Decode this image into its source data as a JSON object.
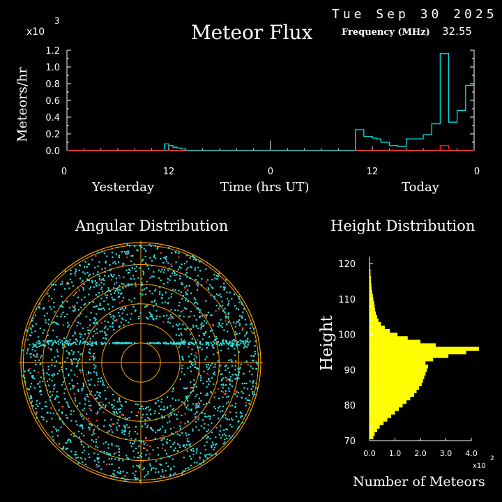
{
  "header": {
    "date": "Tue Sep 30 2025",
    "frequency_label": "Frequency (MHz)",
    "frequency_value": "32.55"
  },
  "colors": {
    "background": "#000000",
    "axes": "#ffffff",
    "flux_line": "#00e5e5",
    "flux_red": "#ff2020",
    "ring": "#ffa500",
    "points": "#33dddd",
    "points_red": "#ff3030",
    "histogram": "#ffff00"
  },
  "chart_data": [
    {
      "type": "line",
      "title": "Meteor Flux",
      "ylabel": "Meteors/hr",
      "yexponent_label": "x10",
      "yexponent": "3",
      "xlabel": "Time (hrs UT)",
      "x_day_labels": [
        "Yesterday",
        "Today"
      ],
      "xticks": [
        "0",
        "12",
        "0",
        "12",
        "0"
      ],
      "yticks": [
        "0.0",
        "0.2",
        "0.4",
        "0.6",
        "0.8",
        "1.0",
        "1.2"
      ],
      "ylim": [
        0,
        1.2
      ],
      "xlim": [
        0,
        48
      ],
      "series": [
        {
          "color": "cyan",
          "x": [
            11.5,
            12.0,
            12.5,
            13.0,
            13.5,
            14.0,
            34.0,
            35.0,
            36.0,
            36.5,
            37.0,
            38.0,
            39.0,
            40.0,
            41.0,
            42.0,
            43.0,
            44.0,
            45.0,
            46.0,
            47.0,
            48.0
          ],
          "values": [
            0.08,
            0.06,
            0.04,
            0.03,
            0.02,
            0.0,
            0.25,
            0.17,
            0.15,
            0.14,
            0.1,
            0.06,
            0.05,
            0.14,
            0.14,
            0.19,
            0.32,
            1.16,
            0.34,
            0.48,
            0.78,
            0.78
          ]
        },
        {
          "color": "red",
          "x": [
            44.0,
            45.0
          ],
          "values": [
            0.06,
            0.02
          ]
        }
      ],
      "cursor_x": 24.0
    },
    {
      "type": "scatter",
      "title": "Angular Distribution",
      "rings": 6,
      "point_count_cyan": 2100,
      "point_count_red": 140
    },
    {
      "type": "bar",
      "title": "Height Distribution",
      "ylabel": "Height",
      "xlabel": "Number of Meteors",
      "xexponent_label": "x10",
      "xexponent": "2",
      "yticks": [
        "70",
        "80",
        "90",
        "100",
        "110",
        "120"
      ],
      "xticks": [
        "0.0",
        "1.0",
        "2.0",
        "3.0",
        "4.0"
      ],
      "ylim": [
        70,
        122
      ],
      "xlim": [
        0,
        4.0
      ],
      "heights": [
        71,
        72,
        73,
        74,
        75,
        76,
        77,
        78,
        79,
        80,
        81,
        82,
        83,
        84,
        85,
        86,
        87,
        88,
        89,
        90,
        91,
        92,
        93,
        94,
        95,
        96,
        97,
        98,
        99,
        100,
        101,
        102,
        103,
        104,
        105,
        106,
        107,
        108,
        109,
        110,
        111,
        112,
        113,
        114,
        115,
        116,
        117,
        118,
        119,
        120
      ],
      "values": [
        0.15,
        0.2,
        0.3,
        0.4,
        0.55,
        0.7,
        0.85,
        1.0,
        1.15,
        1.3,
        1.45,
        1.6,
        1.75,
        1.85,
        1.95,
        2.05,
        2.1,
        2.15,
        2.2,
        2.25,
        2.3,
        2.2,
        2.5,
        3.1,
        3.8,
        4.3,
        2.6,
        2.0,
        1.5,
        1.1,
        0.8,
        0.6,
        0.45,
        0.35,
        0.3,
        0.25,
        0.22,
        0.2,
        0.18,
        0.15,
        0.13,
        0.1,
        0.08,
        0.07,
        0.06,
        0.05,
        0.04,
        0.03,
        0.02,
        0.02
      ]
    }
  ]
}
